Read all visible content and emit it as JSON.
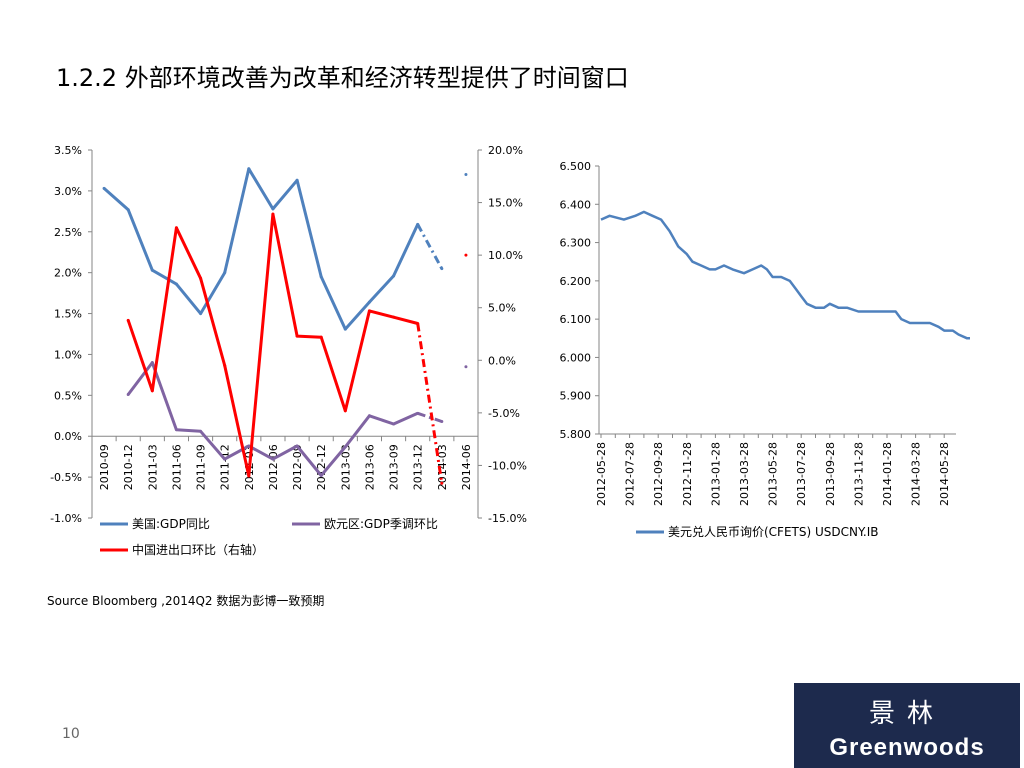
{
  "title": "1.2.2 外部环境改善为改革和经济转型提供了时间窗口",
  "source": "Source Bloomberg ,2014Q2 数据为彭博一致预期",
  "page_number": "10",
  "logo": {
    "chinese": "景林",
    "english": "Greenwoods"
  },
  "chart_data": [
    {
      "type": "line",
      "categories": [
        "2010-09",
        "2010-12",
        "2011-03",
        "2011-06",
        "2011-09",
        "2011-12",
        "2012-03",
        "2012-06",
        "2012-09",
        "2012-12",
        "2013-03",
        "2013-06",
        "2013-09",
        "2013-12",
        "2014-03",
        "2014-06"
      ],
      "left_axis": {
        "ticks": [
          "3.5%",
          "3.0%",
          "2.5%",
          "2.0%",
          "1.5%",
          "1.0%",
          "0.5%",
          "0.0%",
          "-0.5%",
          "-1.0%"
        ],
        "ylim": [
          -1.0,
          3.5
        ]
      },
      "right_axis": {
        "ticks": [
          "20.0%",
          "15.0%",
          "10.0%",
          "5.0%",
          "0.0%",
          "-5.0%",
          "-10.0%",
          "-15.0%"
        ],
        "ylim": [
          -15,
          20
        ]
      },
      "legend_position": "bottom",
      "series": [
        {
          "name": "美国:GDP同比",
          "axis": "left",
          "color": "#4f81bd",
          "values": [
            3.03,
            2.77,
            2.03,
            1.86,
            1.5,
            2.0,
            3.27,
            2.78,
            3.13,
            1.95,
            1.31,
            1.64,
            1.96,
            2.59,
            2.05,
            3.2
          ],
          "forecast_from": 14
        },
        {
          "name": "欧元区:GDP季调环比",
          "axis": "left",
          "color": "#8064a2",
          "values": [
            null,
            0.51,
            0.9,
            0.08,
            0.06,
            -0.28,
            -0.12,
            -0.28,
            -0.12,
            -0.48,
            -0.13,
            0.25,
            0.15,
            0.28,
            0.18,
            0.85
          ],
          "forecast_from": 14
        },
        {
          "name": "中国进出口环比（右轴）",
          "axis": "right",
          "color": "#ff0000",
          "values": [
            null,
            3.8,
            -2.9,
            12.6,
            7.8,
            -0.5,
            -11.0,
            13.9,
            2.3,
            2.2,
            -4.8,
            4.7,
            4.1,
            3.5,
            -11.7,
            10.0
          ],
          "forecast_from": 14
        }
      ]
    },
    {
      "type": "line",
      "x_ticks": [
        "2012-05-28",
        "2012-07-28",
        "2012-09-28",
        "2012-11-28",
        "2013-01-28",
        "2013-03-28",
        "2013-05-28",
        "2013-07-28",
        "2013-09-28",
        "2013-11-28",
        "2014-01-28",
        "2014-03-28",
        "2014-05-28"
      ],
      "y_ticks": [
        "6.500",
        "6.400",
        "6.300",
        "6.200",
        "6.100",
        "6.000",
        "5.900",
        "5.800"
      ],
      "ylim": [
        5.8,
        6.5
      ],
      "legend_position": "bottom",
      "series": [
        {
          "name": "美元兑人民币询价(CFETS) USDCNY.IB",
          "color": "#4f81bd",
          "points": [
            [
              0,
              6.36
            ],
            [
              0.3,
              6.37
            ],
            [
              0.8,
              6.36
            ],
            [
              1.2,
              6.37
            ],
            [
              1.5,
              6.38
            ],
            [
              1.8,
              6.37
            ],
            [
              2.1,
              6.36
            ],
            [
              2.4,
              6.33
            ],
            [
              2.7,
              6.29
            ],
            [
              3.0,
              6.27
            ],
            [
              3.2,
              6.25
            ],
            [
              3.5,
              6.24
            ],
            [
              3.8,
              6.23
            ],
            [
              4.0,
              6.23
            ],
            [
              4.3,
              6.24
            ],
            [
              4.6,
              6.23
            ],
            [
              5.0,
              6.22
            ],
            [
              5.3,
              6.23
            ],
            [
              5.6,
              6.24
            ],
            [
              5.8,
              6.23
            ],
            [
              6.0,
              6.21
            ],
            [
              6.3,
              6.21
            ],
            [
              6.6,
              6.2
            ],
            [
              6.8,
              6.18
            ],
            [
              7.0,
              6.16
            ],
            [
              7.2,
              6.14
            ],
            [
              7.5,
              6.13
            ],
            [
              7.8,
              6.13
            ],
            [
              8.0,
              6.14
            ],
            [
              8.3,
              6.13
            ],
            [
              8.6,
              6.13
            ],
            [
              9.0,
              6.12
            ],
            [
              9.5,
              6.12
            ],
            [
              10.0,
              6.12
            ],
            [
              10.3,
              6.12
            ],
            [
              10.5,
              6.1
            ],
            [
              10.8,
              6.09
            ],
            [
              11.2,
              6.09
            ],
            [
              11.5,
              6.09
            ],
            [
              11.8,
              6.08
            ],
            [
              12.0,
              6.07
            ],
            [
              12.3,
              6.07
            ],
            [
              12.5,
              6.06
            ],
            [
              12.8,
              6.05
            ],
            [
              13.0,
              6.05
            ],
            [
              13.2,
              6.06
            ],
            [
              13.5,
              6.06
            ],
            [
              13.8,
              6.07
            ],
            [
              14.0,
              6.1
            ],
            [
              14.2,
              6.13
            ],
            [
              14.4,
              6.15
            ],
            [
              14.6,
              6.16
            ],
            [
              14.8,
              6.22
            ],
            [
              15.0,
              6.21
            ],
            [
              15.3,
              6.23
            ],
            [
              15.6,
              6.25
            ],
            [
              15.8,
              6.24
            ],
            [
              16.0,
              6.23
            ],
            [
              16.3,
              6.25
            ],
            [
              16.5,
              6.24
            ],
            [
              16.7,
              6.22
            ],
            [
              16.9,
              6.23
            ]
          ]
        }
      ]
    }
  ]
}
